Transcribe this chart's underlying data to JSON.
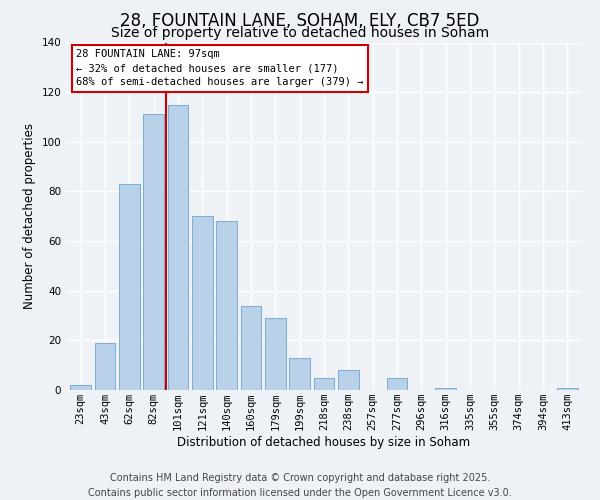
{
  "title": "28, FOUNTAIN LANE, SOHAM, ELY, CB7 5ED",
  "subtitle": "Size of property relative to detached houses in Soham",
  "xlabel": "Distribution of detached houses by size in Soham",
  "ylabel": "Number of detached properties",
  "categories": [
    "23sqm",
    "43sqm",
    "62sqm",
    "82sqm",
    "101sqm",
    "121sqm",
    "140sqm",
    "160sqm",
    "179sqm",
    "199sqm",
    "218sqm",
    "238sqm",
    "257sqm",
    "277sqm",
    "296sqm",
    "316sqm",
    "335sqm",
    "355sqm",
    "374sqm",
    "394sqm",
    "413sqm"
  ],
  "values": [
    2,
    19,
    83,
    111,
    115,
    70,
    68,
    34,
    29,
    13,
    5,
    8,
    0,
    5,
    0,
    1,
    0,
    0,
    0,
    0,
    1
  ],
  "bar_color": "#b8d0e8",
  "bar_edge_color": "#7aaed6",
  "ylim": [
    0,
    140
  ],
  "yticks": [
    0,
    20,
    40,
    60,
    80,
    100,
    120,
    140
  ],
  "annotation_text": "28 FOUNTAIN LANE: 97sqm\n← 32% of detached houses are smaller (177)\n68% of semi-detached houses are larger (379) →",
  "vline_x": 3.5,
  "vline_color": "#cc0000",
  "annotation_box_facecolor": "#ffffff",
  "annotation_box_edgecolor": "#cc0000",
  "footer_line1": "Contains HM Land Registry data © Crown copyright and database right 2025.",
  "footer_line2": "Contains public sector information licensed under the Open Government Licence v3.0.",
  "background_color": "#eef2f7",
  "grid_color": "#ffffff",
  "title_fontsize": 12,
  "subtitle_fontsize": 10,
  "axis_label_fontsize": 8.5,
  "tick_fontsize": 7.5,
  "annotation_fontsize": 7.5,
  "footer_fontsize": 7
}
